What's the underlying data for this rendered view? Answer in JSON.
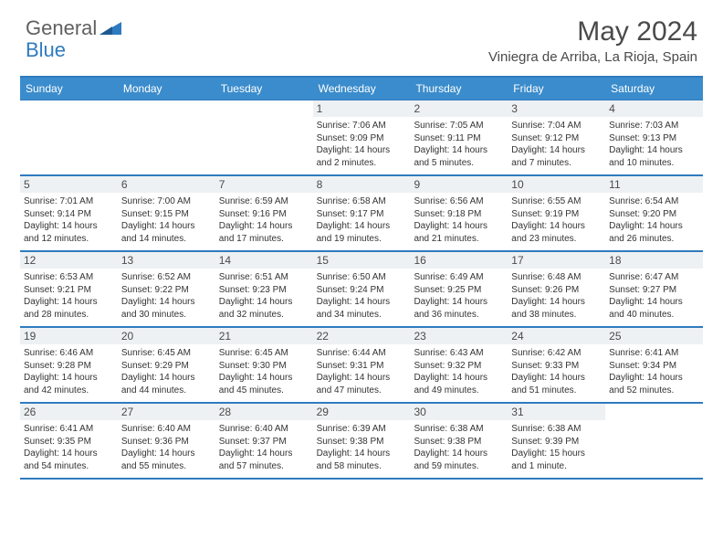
{
  "logo": {
    "part1": "General",
    "part2": "Blue"
  },
  "title": "May 2024",
  "location": "Viniegra de Arriba, La Rioja, Spain",
  "colors": {
    "header_bg": "#3b8ccc",
    "border": "#2f7bbf",
    "daynum_bg": "#eef1f3",
    "text": "#4a4a4a"
  },
  "day_headers": [
    "Sunday",
    "Monday",
    "Tuesday",
    "Wednesday",
    "Thursday",
    "Friday",
    "Saturday"
  ],
  "weeks": [
    [
      {
        "n": "",
        "sr": "",
        "ss": "",
        "dl": ""
      },
      {
        "n": "",
        "sr": "",
        "ss": "",
        "dl": ""
      },
      {
        "n": "",
        "sr": "",
        "ss": "",
        "dl": ""
      },
      {
        "n": "1",
        "sr": "Sunrise: 7:06 AM",
        "ss": "Sunset: 9:09 PM",
        "dl": "Daylight: 14 hours and 2 minutes."
      },
      {
        "n": "2",
        "sr": "Sunrise: 7:05 AM",
        "ss": "Sunset: 9:11 PM",
        "dl": "Daylight: 14 hours and 5 minutes."
      },
      {
        "n": "3",
        "sr": "Sunrise: 7:04 AM",
        "ss": "Sunset: 9:12 PM",
        "dl": "Daylight: 14 hours and 7 minutes."
      },
      {
        "n": "4",
        "sr": "Sunrise: 7:03 AM",
        "ss": "Sunset: 9:13 PM",
        "dl": "Daylight: 14 hours and 10 minutes."
      }
    ],
    [
      {
        "n": "5",
        "sr": "Sunrise: 7:01 AM",
        "ss": "Sunset: 9:14 PM",
        "dl": "Daylight: 14 hours and 12 minutes."
      },
      {
        "n": "6",
        "sr": "Sunrise: 7:00 AM",
        "ss": "Sunset: 9:15 PM",
        "dl": "Daylight: 14 hours and 14 minutes."
      },
      {
        "n": "7",
        "sr": "Sunrise: 6:59 AM",
        "ss": "Sunset: 9:16 PM",
        "dl": "Daylight: 14 hours and 17 minutes."
      },
      {
        "n": "8",
        "sr": "Sunrise: 6:58 AM",
        "ss": "Sunset: 9:17 PM",
        "dl": "Daylight: 14 hours and 19 minutes."
      },
      {
        "n": "9",
        "sr": "Sunrise: 6:56 AM",
        "ss": "Sunset: 9:18 PM",
        "dl": "Daylight: 14 hours and 21 minutes."
      },
      {
        "n": "10",
        "sr": "Sunrise: 6:55 AM",
        "ss": "Sunset: 9:19 PM",
        "dl": "Daylight: 14 hours and 23 minutes."
      },
      {
        "n": "11",
        "sr": "Sunrise: 6:54 AM",
        "ss": "Sunset: 9:20 PM",
        "dl": "Daylight: 14 hours and 26 minutes."
      }
    ],
    [
      {
        "n": "12",
        "sr": "Sunrise: 6:53 AM",
        "ss": "Sunset: 9:21 PM",
        "dl": "Daylight: 14 hours and 28 minutes."
      },
      {
        "n": "13",
        "sr": "Sunrise: 6:52 AM",
        "ss": "Sunset: 9:22 PM",
        "dl": "Daylight: 14 hours and 30 minutes."
      },
      {
        "n": "14",
        "sr": "Sunrise: 6:51 AM",
        "ss": "Sunset: 9:23 PM",
        "dl": "Daylight: 14 hours and 32 minutes."
      },
      {
        "n": "15",
        "sr": "Sunrise: 6:50 AM",
        "ss": "Sunset: 9:24 PM",
        "dl": "Daylight: 14 hours and 34 minutes."
      },
      {
        "n": "16",
        "sr": "Sunrise: 6:49 AM",
        "ss": "Sunset: 9:25 PM",
        "dl": "Daylight: 14 hours and 36 minutes."
      },
      {
        "n": "17",
        "sr": "Sunrise: 6:48 AM",
        "ss": "Sunset: 9:26 PM",
        "dl": "Daylight: 14 hours and 38 minutes."
      },
      {
        "n": "18",
        "sr": "Sunrise: 6:47 AM",
        "ss": "Sunset: 9:27 PM",
        "dl": "Daylight: 14 hours and 40 minutes."
      }
    ],
    [
      {
        "n": "19",
        "sr": "Sunrise: 6:46 AM",
        "ss": "Sunset: 9:28 PM",
        "dl": "Daylight: 14 hours and 42 minutes."
      },
      {
        "n": "20",
        "sr": "Sunrise: 6:45 AM",
        "ss": "Sunset: 9:29 PM",
        "dl": "Daylight: 14 hours and 44 minutes."
      },
      {
        "n": "21",
        "sr": "Sunrise: 6:45 AM",
        "ss": "Sunset: 9:30 PM",
        "dl": "Daylight: 14 hours and 45 minutes."
      },
      {
        "n": "22",
        "sr": "Sunrise: 6:44 AM",
        "ss": "Sunset: 9:31 PM",
        "dl": "Daylight: 14 hours and 47 minutes."
      },
      {
        "n": "23",
        "sr": "Sunrise: 6:43 AM",
        "ss": "Sunset: 9:32 PM",
        "dl": "Daylight: 14 hours and 49 minutes."
      },
      {
        "n": "24",
        "sr": "Sunrise: 6:42 AM",
        "ss": "Sunset: 9:33 PM",
        "dl": "Daylight: 14 hours and 51 minutes."
      },
      {
        "n": "25",
        "sr": "Sunrise: 6:41 AM",
        "ss": "Sunset: 9:34 PM",
        "dl": "Daylight: 14 hours and 52 minutes."
      }
    ],
    [
      {
        "n": "26",
        "sr": "Sunrise: 6:41 AM",
        "ss": "Sunset: 9:35 PM",
        "dl": "Daylight: 14 hours and 54 minutes."
      },
      {
        "n": "27",
        "sr": "Sunrise: 6:40 AM",
        "ss": "Sunset: 9:36 PM",
        "dl": "Daylight: 14 hours and 55 minutes."
      },
      {
        "n": "28",
        "sr": "Sunrise: 6:40 AM",
        "ss": "Sunset: 9:37 PM",
        "dl": "Daylight: 14 hours and 57 minutes."
      },
      {
        "n": "29",
        "sr": "Sunrise: 6:39 AM",
        "ss": "Sunset: 9:38 PM",
        "dl": "Daylight: 14 hours and 58 minutes."
      },
      {
        "n": "30",
        "sr": "Sunrise: 6:38 AM",
        "ss": "Sunset: 9:38 PM",
        "dl": "Daylight: 14 hours and 59 minutes."
      },
      {
        "n": "31",
        "sr": "Sunrise: 6:38 AM",
        "ss": "Sunset: 9:39 PM",
        "dl": "Daylight: 15 hours and 1 minute."
      },
      {
        "n": "",
        "sr": "",
        "ss": "",
        "dl": ""
      }
    ]
  ]
}
